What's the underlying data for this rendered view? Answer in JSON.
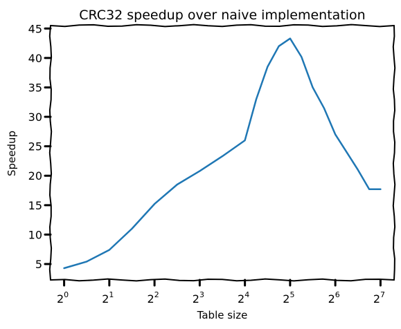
{
  "chart_data": {
    "type": "line",
    "title": "CRC32 speedup over naive implementation",
    "xlabel": "Table size",
    "ylabel": "Speedup",
    "x_scale": "log2",
    "x_ticks": [
      {
        "base": "2",
        "exp": "0"
      },
      {
        "base": "2",
        "exp": "1"
      },
      {
        "base": "2",
        "exp": "2"
      },
      {
        "base": "2",
        "exp": "3"
      },
      {
        "base": "2",
        "exp": "4"
      },
      {
        "base": "2",
        "exp": "5"
      },
      {
        "base": "2",
        "exp": "6"
      },
      {
        "base": "2",
        "exp": "7"
      }
    ],
    "y_ticks": [
      "5",
      "10",
      "15",
      "20",
      "25",
      "30",
      "35",
      "40",
      "45"
    ],
    "ylim": [
      2.3,
      45.5
    ],
    "xlim": [
      -0.3,
      7.3
    ],
    "grid": false,
    "line_color": "#1f77b4",
    "series": [
      {
        "x": [
          1,
          1.41,
          2,
          2.83,
          4,
          5.66,
          8,
          11.31,
          16,
          19.03,
          22.63,
          26.91,
          32,
          38.05,
          45.25,
          53.82,
          64,
          76.11,
          90.51,
          107.63,
          128
        ],
        "values": [
          4.3,
          5.4,
          7.4,
          11.0,
          15.2,
          18.5,
          20.8,
          23.3,
          26.0,
          33.0,
          38.5,
          42.0,
          43.3,
          40.2,
          35.0,
          31.5,
          27.0,
          24.0,
          21.0,
          17.7,
          17.7
        ]
      }
    ]
  }
}
